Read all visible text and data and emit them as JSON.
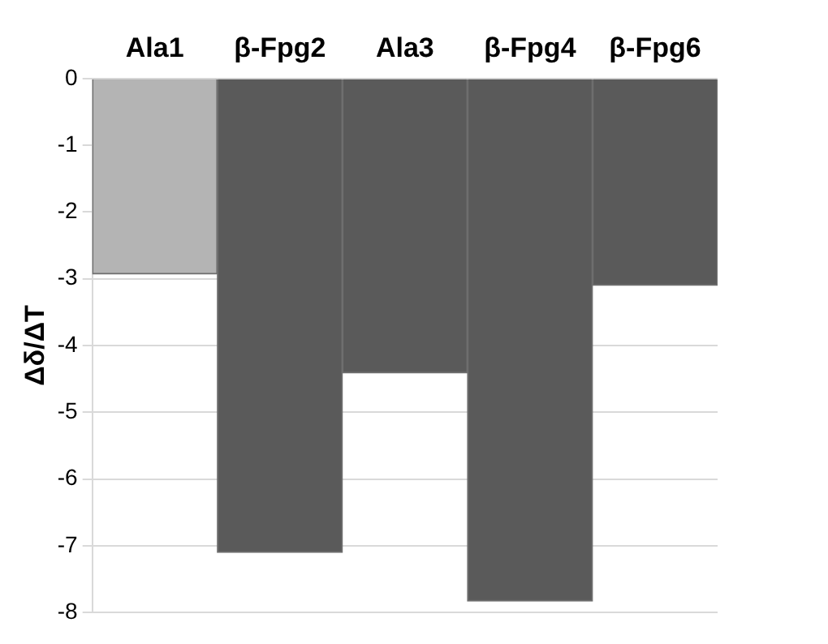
{
  "chart_data": {
    "type": "bar",
    "ylabel": "Δδ/ΔT",
    "categories": [
      "Ala1",
      "β-Fpg2",
      "Ala3",
      "β-Fpg4",
      "β-Fpg6"
    ],
    "values": [
      -2.93,
      -7.1,
      -4.41,
      -7.83,
      -3.1
    ],
    "colors": [
      "#b4b4b4",
      "#5a5a5a",
      "#5a5a5a",
      "#5a5a5a",
      "#5a5a5a"
    ],
    "ylim": [
      -8,
      0
    ],
    "yticks": [
      -8,
      -7,
      -6,
      -5,
      -4,
      -3,
      -2,
      -1,
      0
    ],
    "grid": "y"
  }
}
